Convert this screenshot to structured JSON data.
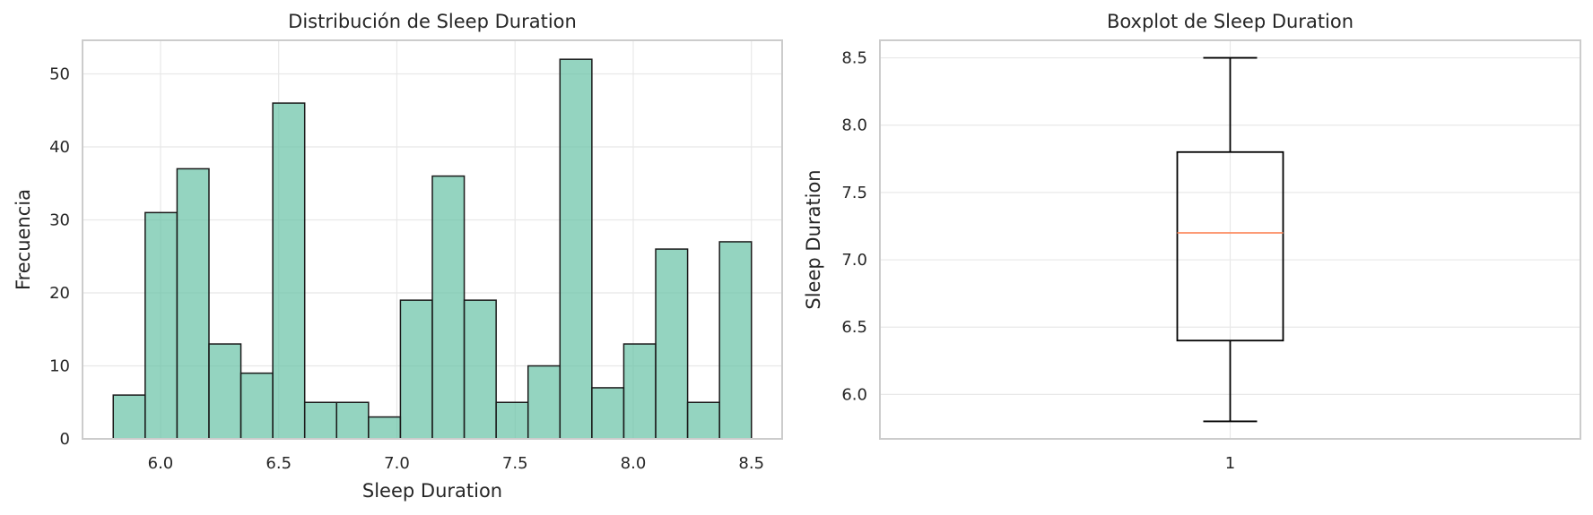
{
  "chart_data": [
    {
      "type": "bar",
      "title": "Distribución de Sleep Duration",
      "xlabel": "Sleep Duration",
      "ylabel": "Frecuencia",
      "xlim": [
        5.67,
        8.63
      ],
      "ylim": [
        0,
        54.6
      ],
      "xticks": [
        "6.0",
        "6.5",
        "7.0",
        "7.5",
        "8.0",
        "8.5"
      ],
      "yticks": [
        "0",
        "10",
        "20",
        "30",
        "40",
        "50"
      ],
      "grid": true,
      "bin_start": 5.8,
      "bin_width": 0.135,
      "values": [
        6,
        31,
        37,
        13,
        9,
        46,
        5,
        5,
        3,
        19,
        36,
        19,
        5,
        10,
        52,
        7,
        13,
        26,
        5,
        27
      ],
      "color": "#66c2a5"
    },
    {
      "type": "box",
      "title": "Boxplot de Sleep Duration",
      "xlabel": "",
      "ylabel": "Sleep Duration",
      "ylim": [
        5.67,
        8.63
      ],
      "yticks": [
        "6.0",
        "6.5",
        "7.0",
        "7.5",
        "8.0",
        "8.5"
      ],
      "xticks": [
        "1"
      ],
      "grid": true,
      "whisker_low": 5.8,
      "q1": 6.4,
      "median": 7.2,
      "q3": 7.8,
      "whisker_high": 8.5,
      "median_color": "#fc8d62"
    }
  ]
}
